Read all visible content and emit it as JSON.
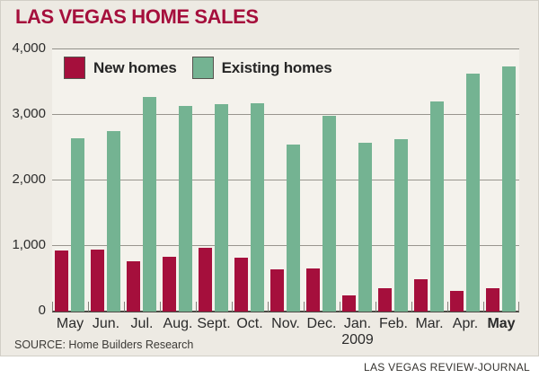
{
  "title": "LAS VEGAS HOME SALES",
  "source": "SOURCE: Home Builders Research",
  "credit": "LAS VEGAS REVIEW-JOURNAL",
  "legend": {
    "items": [
      {
        "label": "New homes",
        "color": "#a50f3c"
      },
      {
        "label": "Existing homes",
        "color": "#74b392"
      }
    ]
  },
  "colors": {
    "panel_background": "#edeae3",
    "plot_background": "#f4f2ec",
    "new_homes": "#a50f3c",
    "existing_homes": "#74b392",
    "title_text": "#a50f3c",
    "gridline": "#98958e",
    "axis_line": "#4d4b46",
    "label_text": "#2b2b2b"
  },
  "chart_data": {
    "type": "bar",
    "title": "LAS VEGAS HOME SALES",
    "categories": [
      "May",
      "Jun.",
      "Jul.",
      "Aug.",
      "Sept.",
      "Oct.",
      "Nov.",
      "Dec.",
      "Jan.",
      "Feb.",
      "Mar.",
      "Apr.",
      "May"
    ],
    "year_label": {
      "text": "2009",
      "under_index": 8
    },
    "last_category_bold": true,
    "series": [
      {
        "name": "New homes",
        "color": "#a50f3c",
        "values": [
          930,
          940,
          770,
          840,
          970,
          820,
          650,
          660,
          250,
          350,
          490,
          320,
          360
        ]
      },
      {
        "name": "Existing homes",
        "color": "#74b392",
        "values": [
          2640,
          2750,
          3270,
          3140,
          3170,
          3180,
          2550,
          2980,
          2580,
          2630,
          3200,
          3630,
          3740
        ]
      }
    ],
    "xlabel": "",
    "ylabel": "",
    "ylim": [
      0,
      4000
    ],
    "yticks": [
      0,
      1000,
      2000,
      3000,
      4000
    ],
    "ytick_labels": [
      "0",
      "1,000",
      "2,000",
      "3,000",
      "4,000"
    ],
    "grid": true,
    "legend_position": "top-left-inside",
    "source": "Home Builders Research"
  }
}
